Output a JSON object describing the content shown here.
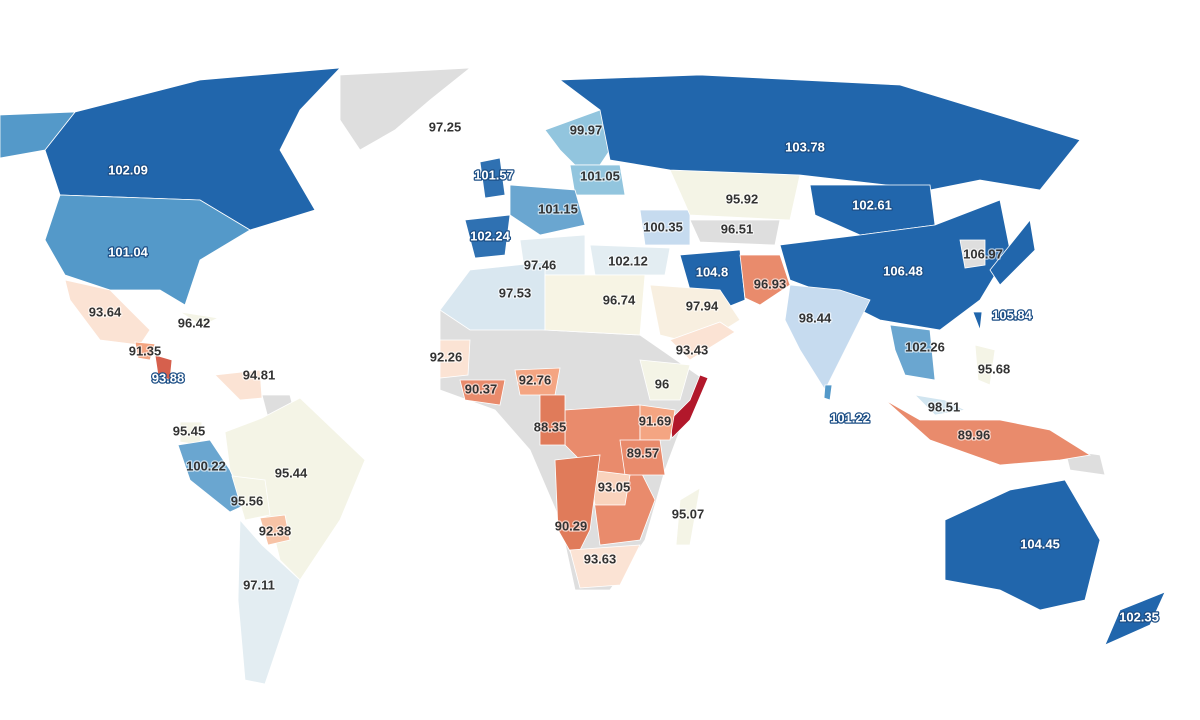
{
  "map": {
    "regions": [
      {
        "value": 97.25,
        "color": "#dedede"
      },
      {
        "value": 102.09,
        "color": "#2166ac"
      },
      {
        "value": 101.04,
        "color": "#5499c9"
      },
      {
        "value": 93.64,
        "color": "#fbe3d4"
      },
      {
        "value": 96.42,
        "color": "#f4f4e6"
      },
      {
        "value": 91.35,
        "color": "#f4a582"
      },
      {
        "value": 93.88,
        "color": "#d6604d"
      },
      {
        "value": 94.81,
        "color": "#fbe3d4"
      },
      {
        "value": 95.45,
        "color": "#f4f4e6"
      },
      {
        "value": 100.22,
        "color": "#6aa6d0"
      },
      {
        "value": 95.44,
        "color": "#f4f4e6"
      },
      {
        "value": 95.56,
        "color": "#f4f4e6"
      },
      {
        "value": 92.38,
        "color": "#f7c3a6"
      },
      {
        "value": 97.11,
        "color": "#e3edf2"
      },
      {
        "value": 101.57,
        "color": "#2f71b2"
      },
      {
        "value": 99.97,
        "color": "#92c5de"
      },
      {
        "value": 101.05,
        "color": "#92c5de"
      },
      {
        "value": 101.15,
        "color": "#6aa6d0"
      },
      {
        "value": 102.24,
        "color": "#2f71b2"
      },
      {
        "value": 97.46,
        "color": "#e3edf2"
      },
      {
        "value": 97.53,
        "color": "#d9e7f0"
      },
      {
        "value": 102.12,
        "color": "#e3edf2"
      },
      {
        "value": 96.74,
        "color": "#f7f4e4"
      },
      {
        "value": 100.35,
        "color": "#c6dbef"
      },
      {
        "value": 95.92,
        "color": "#f4f4e6"
      },
      {
        "value": 96.51,
        "color": "#dedede"
      },
      {
        "value": 103.78,
        "color": "#2166ac"
      },
      {
        "value": 102.61,
        "color": "#2166ac"
      },
      {
        "value": 106.48,
        "color": "#2166ac"
      },
      {
        "value": 106.97,
        "color": "#dedede"
      },
      {
        "value": 104.8,
        "color": "#2166ac"
      },
      {
        "value": 96.93,
        "color": "#e98b6c"
      },
      {
        "value": 97.94,
        "color": "#f8efe0"
      },
      {
        "value": 93.43,
        "color": "#fbe3d4"
      },
      {
        "value": 98.44,
        "color": "#c6dbef"
      },
      {
        "value": 105.84,
        "color": "#2166ac"
      },
      {
        "value": 102.26,
        "color": "#6aa6d0"
      },
      {
        "value": 95.68,
        "color": "#f4f4e6"
      },
      {
        "value": 101.22,
        "color": "#5499c9"
      },
      {
        "value": 98.51,
        "color": "#d1e5f0"
      },
      {
        "value": 89.96,
        "color": "#e98b6c"
      },
      {
        "value": 104.45,
        "color": "#2166ac"
      },
      {
        "value": 102.35,
        "color": "#2166ac"
      },
      {
        "value": 92.26,
        "color": "#fbe3d4"
      },
      {
        "value": 90.37,
        "color": "#e98b6c"
      },
      {
        "value": 92.76,
        "color": "#f4a582"
      },
      {
        "value": 96,
        "color": "#f4f4e6"
      },
      {
        "value": 88.35,
        "color": "#e07b5a"
      },
      {
        "value": 91.69,
        "color": "#f4a582"
      },
      {
        "value": 89.57,
        "color": "#e98b6c"
      },
      {
        "value": 93.05,
        "color": "#f9d3bd"
      },
      {
        "value": 95.07,
        "color": "#f4f4e6"
      },
      {
        "value": 90.29,
        "color": "#e07b5a"
      },
      {
        "value": 93.63,
        "color": "#fbe3d4"
      }
    ]
  }
}
